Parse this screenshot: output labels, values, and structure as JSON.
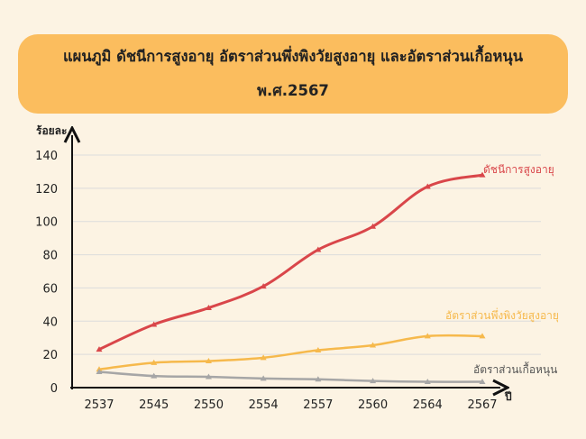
{
  "title": {
    "line1": "แผนภูมิ ดัชนีการสูงอายุ อัตราส่วนพึ่งพิงวัยสูงอายุ และอัตราส่วนเกื้อหนุน",
    "line2": "พ.ศ.2567"
  },
  "chart_data": {
    "type": "line",
    "title": "แผนภูมิ ดัชนีการสูงอายุ อัตราส่วนพึ่งพิงวัยสูงอายุ และอัตราส่วนเกื้อหนุน พ.ศ.2567",
    "xlabel": "ปี",
    "ylabel": "ร้อยละ",
    "categories": [
      "2537",
      "2545",
      "2550",
      "2554",
      "2557",
      "2560",
      "2564",
      "2567"
    ],
    "ylim": [
      0,
      140
    ],
    "yticks": [
      0,
      20,
      40,
      60,
      80,
      100,
      120,
      140
    ],
    "grid": "horizontal",
    "legend": "inline labels at line ends",
    "series": [
      {
        "name": "ดัชนีการสูงอายุ",
        "color": "#d9464a",
        "values": [
          23,
          38,
          48,
          61,
          83,
          97,
          121,
          128
        ]
      },
      {
        "name": "อัตราส่วนพึ่งพิงวัยสูงอายุ",
        "color": "#f6b94c",
        "values": [
          11,
          15,
          16,
          18,
          22.5,
          25.5,
          31,
          31
        ]
      },
      {
        "name": "อัตราส่วนเกื้อหนุน",
        "color": "#a6a6a6",
        "values": [
          9.5,
          7,
          6.5,
          5.5,
          5,
          4,
          3.5,
          3.5
        ]
      }
    ]
  }
}
